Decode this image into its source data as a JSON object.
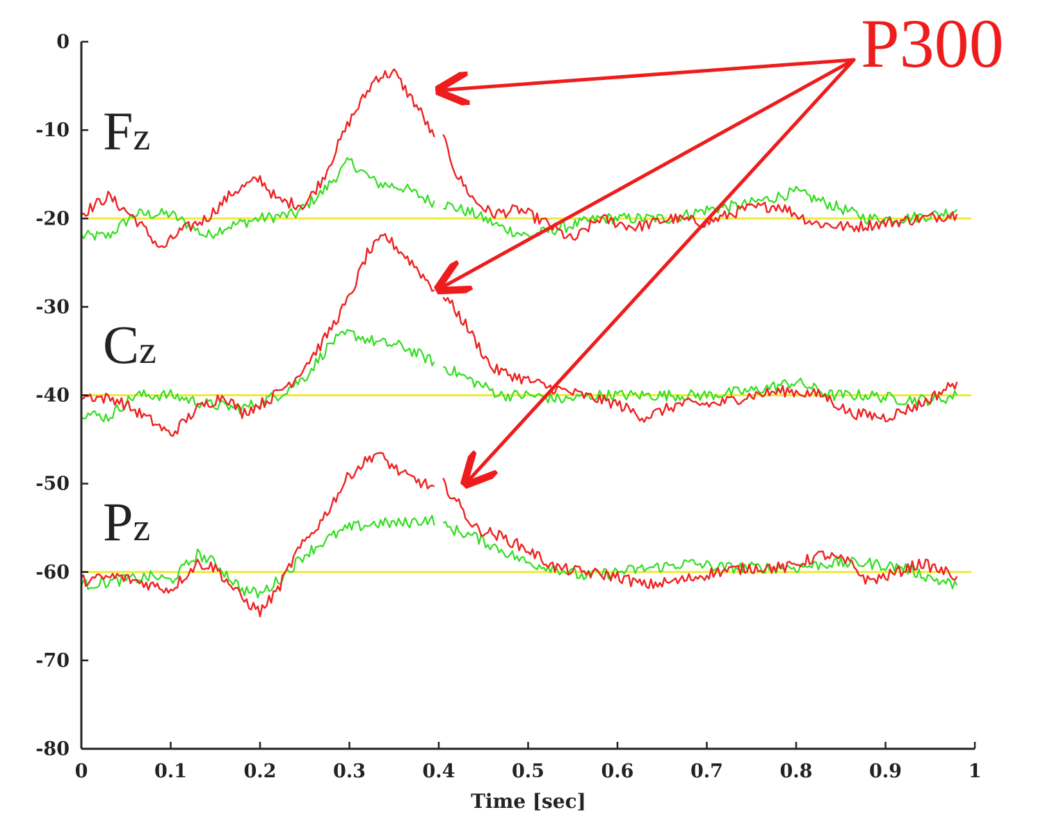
{
  "chart_data": {
    "type": "line",
    "title": "",
    "xlabel": "Time [sec]",
    "ylabel": "",
    "xlim": [
      0,
      1
    ],
    "ylim": [
      -80,
      0
    ],
    "x_ticks": [
      "0",
      "0.1",
      "0.2",
      "0.3",
      "0.4",
      "0.5",
      "0.6",
      "0.7",
      "0.8",
      "0.9",
      "1"
    ],
    "y_ticks": [
      "0",
      "-10",
      "-20",
      "-30",
      "-40",
      "-50",
      "-60",
      "-70",
      "-80"
    ],
    "grid": false,
    "colors": {
      "target": "#ee2222",
      "nontarget": "#33dd22",
      "baseline": "#f2e83a",
      "annotation": "#ee1c1c",
      "axis": "#222222"
    },
    "channels": [
      {
        "label": "Fz",
        "baseline": -20,
        "red": [
          [
            0,
            -19.5
          ],
          [
            0.03,
            -17.5
          ],
          [
            0.06,
            -20
          ],
          [
            0.09,
            -23.5
          ],
          [
            0.11,
            -21.5
          ],
          [
            0.14,
            -20
          ],
          [
            0.17,
            -17
          ],
          [
            0.2,
            -15.5
          ],
          [
            0.22,
            -18
          ],
          [
            0.25,
            -18.5
          ],
          [
            0.27,
            -15.5
          ],
          [
            0.3,
            -9
          ],
          [
            0.33,
            -4
          ],
          [
            0.35,
            -3.5
          ],
          [
            0.38,
            -8
          ],
          [
            0.395,
            -11
          ],
          [
            0.405,
            -11
          ],
          [
            0.42,
            -15
          ],
          [
            0.44,
            -18
          ],
          [
            0.46,
            -19.5
          ],
          [
            0.49,
            -19
          ],
          [
            0.52,
            -20.5
          ],
          [
            0.55,
            -22.5
          ],
          [
            0.58,
            -20
          ],
          [
            0.62,
            -21
          ],
          [
            0.66,
            -20
          ],
          [
            0.7,
            -20.5
          ],
          [
            0.74,
            -19
          ],
          [
            0.78,
            -18.5
          ],
          [
            0.82,
            -20.5
          ],
          [
            0.86,
            -21
          ],
          [
            0.9,
            -20.5
          ],
          [
            0.94,
            -20
          ],
          [
            0.98,
            -19.5
          ]
        ],
        "green": [
          [
            0,
            -22
          ],
          [
            0.03,
            -22
          ],
          [
            0.06,
            -19.5
          ],
          [
            0.1,
            -19.5
          ],
          [
            0.14,
            -22
          ],
          [
            0.16,
            -21
          ],
          [
            0.2,
            -20
          ],
          [
            0.24,
            -19.5
          ],
          [
            0.27,
            -17
          ],
          [
            0.3,
            -13.5
          ],
          [
            0.33,
            -16
          ],
          [
            0.36,
            -16.5
          ],
          [
            0.39,
            -18
          ],
          [
            0.41,
            -18.5
          ],
          [
            0.44,
            -19.5
          ],
          [
            0.47,
            -21
          ],
          [
            0.5,
            -22
          ],
          [
            0.54,
            -21
          ],
          [
            0.58,
            -20
          ],
          [
            0.62,
            -20
          ],
          [
            0.66,
            -20
          ],
          [
            0.7,
            -19
          ],
          [
            0.74,
            -18.5
          ],
          [
            0.8,
            -17
          ],
          [
            0.84,
            -18.5
          ],
          [
            0.88,
            -20
          ],
          [
            0.92,
            -20
          ],
          [
            0.96,
            -19.5
          ],
          [
            0.98,
            -19
          ]
        ]
      },
      {
        "label": "Cz",
        "baseline": -40,
        "red": [
          [
            0,
            -40
          ],
          [
            0.04,
            -40.5
          ],
          [
            0.08,
            -43
          ],
          [
            0.1,
            -44.5
          ],
          [
            0.13,
            -41.5
          ],
          [
            0.16,
            -40
          ],
          [
            0.18,
            -42
          ],
          [
            0.21,
            -40.5
          ],
          [
            0.24,
            -38
          ],
          [
            0.27,
            -34
          ],
          [
            0.3,
            -29
          ],
          [
            0.32,
            -24
          ],
          [
            0.34,
            -22
          ],
          [
            0.37,
            -25
          ],
          [
            0.395,
            -28
          ],
          [
            0.405,
            -28.5
          ],
          [
            0.43,
            -32
          ],
          [
            0.46,
            -37
          ],
          [
            0.49,
            -38
          ],
          [
            0.52,
            -39
          ],
          [
            0.56,
            -40
          ],
          [
            0.6,
            -41
          ],
          [
            0.63,
            -42.5
          ],
          [
            0.67,
            -41
          ],
          [
            0.71,
            -41
          ],
          [
            0.75,
            -40
          ],
          [
            0.79,
            -39.5
          ],
          [
            0.83,
            -40
          ],
          [
            0.86,
            -42
          ],
          [
            0.9,
            -42.5
          ],
          [
            0.94,
            -41
          ],
          [
            0.98,
            -38.5
          ]
        ],
        "green": [
          [
            0,
            -42
          ],
          [
            0.03,
            -42.5
          ],
          [
            0.06,
            -40
          ],
          [
            0.1,
            -40
          ],
          [
            0.14,
            -41
          ],
          [
            0.18,
            -41.5
          ],
          [
            0.22,
            -40
          ],
          [
            0.25,
            -38
          ],
          [
            0.28,
            -34
          ],
          [
            0.3,
            -33
          ],
          [
            0.33,
            -34
          ],
          [
            0.36,
            -34.5
          ],
          [
            0.39,
            -36
          ],
          [
            0.41,
            -37
          ],
          [
            0.44,
            -38.5
          ],
          [
            0.47,
            -40
          ],
          [
            0.5,
            -40
          ],
          [
            0.54,
            -40.5
          ],
          [
            0.58,
            -40
          ],
          [
            0.62,
            -40
          ],
          [
            0.66,
            -40
          ],
          [
            0.7,
            -40
          ],
          [
            0.75,
            -39.5
          ],
          [
            0.8,
            -38.5
          ],
          [
            0.84,
            -40
          ],
          [
            0.88,
            -40
          ],
          [
            0.92,
            -40.5
          ],
          [
            0.96,
            -40.5
          ],
          [
            0.98,
            -40
          ]
        ]
      },
      {
        "label": "Pz",
        "baseline": -60,
        "red": [
          [
            0,
            -61
          ],
          [
            0.04,
            -60.5
          ],
          [
            0.08,
            -61.5
          ],
          [
            0.1,
            -62
          ],
          [
            0.13,
            -59
          ],
          [
            0.15,
            -59.5
          ],
          [
            0.18,
            -63
          ],
          [
            0.2,
            -64.5
          ],
          [
            0.22,
            -62
          ],
          [
            0.24,
            -58
          ],
          [
            0.27,
            -54
          ],
          [
            0.3,
            -49
          ],
          [
            0.33,
            -46.5
          ],
          [
            0.36,
            -49
          ],
          [
            0.395,
            -50.5
          ],
          [
            0.405,
            -50
          ],
          [
            0.42,
            -52
          ],
          [
            0.44,
            -55
          ],
          [
            0.47,
            -56
          ],
          [
            0.5,
            -57.5
          ],
          [
            0.53,
            -59.5
          ],
          [
            0.56,
            -60
          ],
          [
            0.6,
            -60.5
          ],
          [
            0.63,
            -61.5
          ],
          [
            0.67,
            -61
          ],
          [
            0.71,
            -60
          ],
          [
            0.75,
            -59.5
          ],
          [
            0.79,
            -59.5
          ],
          [
            0.83,
            -58
          ],
          [
            0.86,
            -59
          ],
          [
            0.88,
            -61
          ],
          [
            0.9,
            -60.5
          ],
          [
            0.94,
            -59
          ],
          [
            0.98,
            -60.5
          ]
        ],
        "green": [
          [
            0,
            -61.5
          ],
          [
            0.04,
            -61
          ],
          [
            0.08,
            -60.5
          ],
          [
            0.1,
            -61
          ],
          [
            0.13,
            -58
          ],
          [
            0.15,
            -59
          ],
          [
            0.18,
            -62
          ],
          [
            0.2,
            -62.5
          ],
          [
            0.22,
            -61
          ],
          [
            0.25,
            -58
          ],
          [
            0.28,
            -56
          ],
          [
            0.3,
            -55
          ],
          [
            0.33,
            -54.5
          ],
          [
            0.36,
            -54.5
          ],
          [
            0.39,
            -54
          ],
          [
            0.41,
            -55
          ],
          [
            0.44,
            -56
          ],
          [
            0.47,
            -57.5
          ],
          [
            0.5,
            -59
          ],
          [
            0.53,
            -59.5
          ],
          [
            0.56,
            -60.5
          ],
          [
            0.6,
            -60
          ],
          [
            0.64,
            -59.5
          ],
          [
            0.68,
            -59
          ],
          [
            0.72,
            -59.5
          ],
          [
            0.76,
            -59.5
          ],
          [
            0.8,
            -59.5
          ],
          [
            0.84,
            -59
          ],
          [
            0.88,
            -59
          ],
          [
            0.92,
            -59.5
          ],
          [
            0.96,
            -61
          ],
          [
            0.98,
            -61.5
          ]
        ]
      }
    ],
    "annotation": {
      "text": "P300",
      "targets": [
        [
          0.4,
          -5.5
        ],
        [
          0.4,
          -28
        ],
        [
          0.43,
          -50
        ]
      ]
    }
  }
}
